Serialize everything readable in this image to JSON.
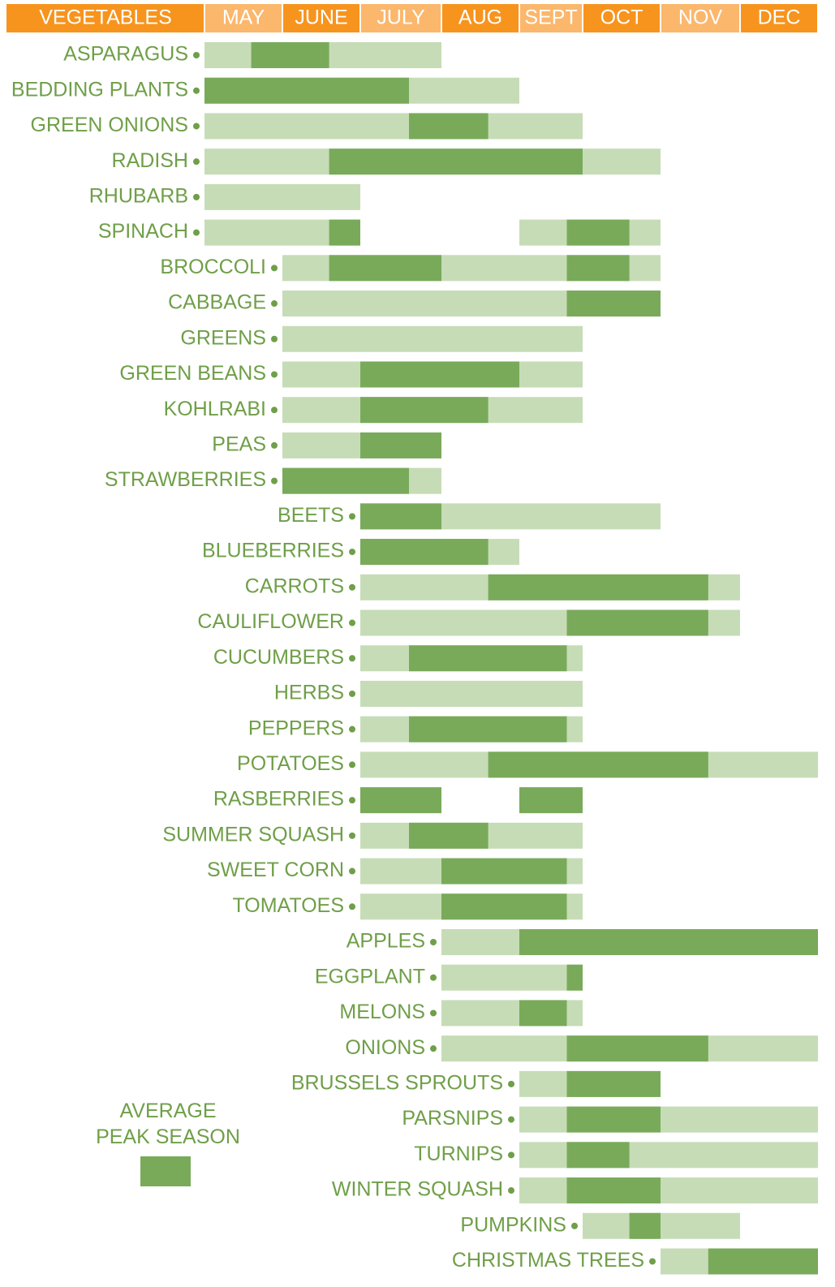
{
  "chart_data": {
    "type": "gantt",
    "header": "VEGETABLES",
    "months": [
      "MAY",
      "JUNE",
      "JULY",
      "AUG",
      "SEPT",
      "OCT",
      "NOV",
      "DEC"
    ],
    "xlim": [
      5,
      13
    ],
    "season_color": "#c6dcb6",
    "peak_color": "#79aa5a",
    "legend": "AVERAGE\nPEAK SEASON",
    "items": [
      {
        "name": "ASPARAGUS",
        "season": [
          [
            5,
            8
          ]
        ],
        "peak": [
          [
            5.6,
            6.6
          ]
        ]
      },
      {
        "name": "BEDDING PLANTS",
        "season": [
          [
            5,
            9
          ]
        ],
        "peak": [
          [
            5,
            7.6
          ]
        ]
      },
      {
        "name": "GREEN ONIONS",
        "season": [
          [
            5,
            10
          ]
        ],
        "peak": [
          [
            7.6,
            8.6
          ]
        ]
      },
      {
        "name": "RADISH",
        "season": [
          [
            5,
            11
          ]
        ],
        "peak": [
          [
            6.6,
            10
          ]
        ]
      },
      {
        "name": "RHUBARB",
        "season": [
          [
            5,
            7
          ]
        ],
        "peak": []
      },
      {
        "name": "SPINACH",
        "season": [
          [
            5,
            7
          ],
          [
            9,
            11
          ]
        ],
        "peak": [
          [
            6.6,
            7
          ],
          [
            9.75,
            10.6
          ]
        ]
      },
      {
        "name": "BROCCOLI",
        "season": [
          [
            6,
            11
          ]
        ],
        "peak": [
          [
            6.6,
            8
          ],
          [
            9.75,
            10.6
          ]
        ]
      },
      {
        "name": "CABBAGE",
        "season": [
          [
            6,
            11
          ]
        ],
        "peak": [
          [
            9.75,
            11
          ]
        ]
      },
      {
        "name": "GREENS",
        "season": [
          [
            6,
            10
          ]
        ],
        "peak": []
      },
      {
        "name": "GREEN BEANS",
        "season": [
          [
            6,
            10
          ]
        ],
        "peak": [
          [
            7,
            9
          ]
        ]
      },
      {
        "name": "KOHLRABI",
        "season": [
          [
            6,
            10
          ]
        ],
        "peak": [
          [
            7,
            8.6
          ]
        ]
      },
      {
        "name": "PEAS",
        "season": [
          [
            6,
            8
          ]
        ],
        "peak": [
          [
            7,
            8
          ]
        ]
      },
      {
        "name": "STRAWBERRIES",
        "season": [
          [
            6,
            8
          ]
        ],
        "peak": [
          [
            6,
            7.6
          ]
        ]
      },
      {
        "name": "BEETS",
        "season": [
          [
            7,
            11
          ]
        ],
        "peak": [
          [
            7,
            8
          ]
        ]
      },
      {
        "name": "BLUEBERRIES",
        "season": [
          [
            7,
            9
          ]
        ],
        "peak": [
          [
            7,
            8.6
          ]
        ]
      },
      {
        "name": "CARROTS",
        "season": [
          [
            7,
            12
          ]
        ],
        "peak": [
          [
            8.6,
            11.6
          ]
        ]
      },
      {
        "name": "CAULIFLOWER",
        "season": [
          [
            7,
            12
          ]
        ],
        "peak": [
          [
            9.75,
            11.6
          ]
        ]
      },
      {
        "name": "CUCUMBERS",
        "season": [
          [
            7,
            10
          ]
        ],
        "peak": [
          [
            7.6,
            9.75
          ]
        ]
      },
      {
        "name": "HERBS",
        "season": [
          [
            7,
            10
          ]
        ],
        "peak": []
      },
      {
        "name": "PEPPERS",
        "season": [
          [
            7,
            10
          ]
        ],
        "peak": [
          [
            7.6,
            9.75
          ]
        ]
      },
      {
        "name": "POTATOES",
        "season": [
          [
            7,
            13
          ]
        ],
        "peak": [
          [
            8.6,
            11.6
          ]
        ]
      },
      {
        "name": "RASBERRIES",
        "season": [],
        "peak": [
          [
            7,
            8
          ],
          [
            9,
            10
          ]
        ]
      },
      {
        "name": "SUMMER SQUASH",
        "season": [
          [
            7,
            10
          ]
        ],
        "peak": [
          [
            7.6,
            8.6
          ]
        ]
      },
      {
        "name": "SWEET CORN",
        "season": [
          [
            7,
            10
          ]
        ],
        "peak": [
          [
            8,
            9.75
          ]
        ]
      },
      {
        "name": "TOMATOES",
        "season": [
          [
            7,
            10
          ]
        ],
        "peak": [
          [
            8,
            9.75
          ]
        ]
      },
      {
        "name": "APPLES",
        "season": [
          [
            8,
            13
          ]
        ],
        "peak": [
          [
            9,
            13
          ]
        ]
      },
      {
        "name": "EGGPLANT",
        "season": [
          [
            8,
            10
          ]
        ],
        "peak": [
          [
            9.75,
            10
          ]
        ]
      },
      {
        "name": "MELONS",
        "season": [
          [
            8,
            10
          ]
        ],
        "peak": [
          [
            9,
            9.75
          ]
        ]
      },
      {
        "name": "ONIONS",
        "season": [
          [
            8,
            13
          ]
        ],
        "peak": [
          [
            9.75,
            11.6
          ]
        ]
      },
      {
        "name": "BRUSSELS SPROUTS",
        "season": [
          [
            9,
            11
          ]
        ],
        "peak": [
          [
            9.75,
            11
          ]
        ]
      },
      {
        "name": "PARSNIPS",
        "season": [
          [
            9,
            13
          ]
        ],
        "peak": [
          [
            9.75,
            11
          ]
        ]
      },
      {
        "name": "TURNIPS",
        "season": [
          [
            9,
            13
          ]
        ],
        "peak": [
          [
            9.75,
            10.6
          ]
        ]
      },
      {
        "name": "WINTER SQUASH",
        "season": [
          [
            9,
            13
          ]
        ],
        "peak": [
          [
            9.75,
            11
          ]
        ]
      },
      {
        "name": "PUMPKINS",
        "season": [
          [
            10,
            12
          ]
        ],
        "peak": [
          [
            10.6,
            11
          ]
        ]
      },
      {
        "name": "CHRISTMAS TREES",
        "season": [
          [
            11,
            13
          ]
        ],
        "peak": [
          [
            11.6,
            13
          ]
        ]
      }
    ]
  }
}
